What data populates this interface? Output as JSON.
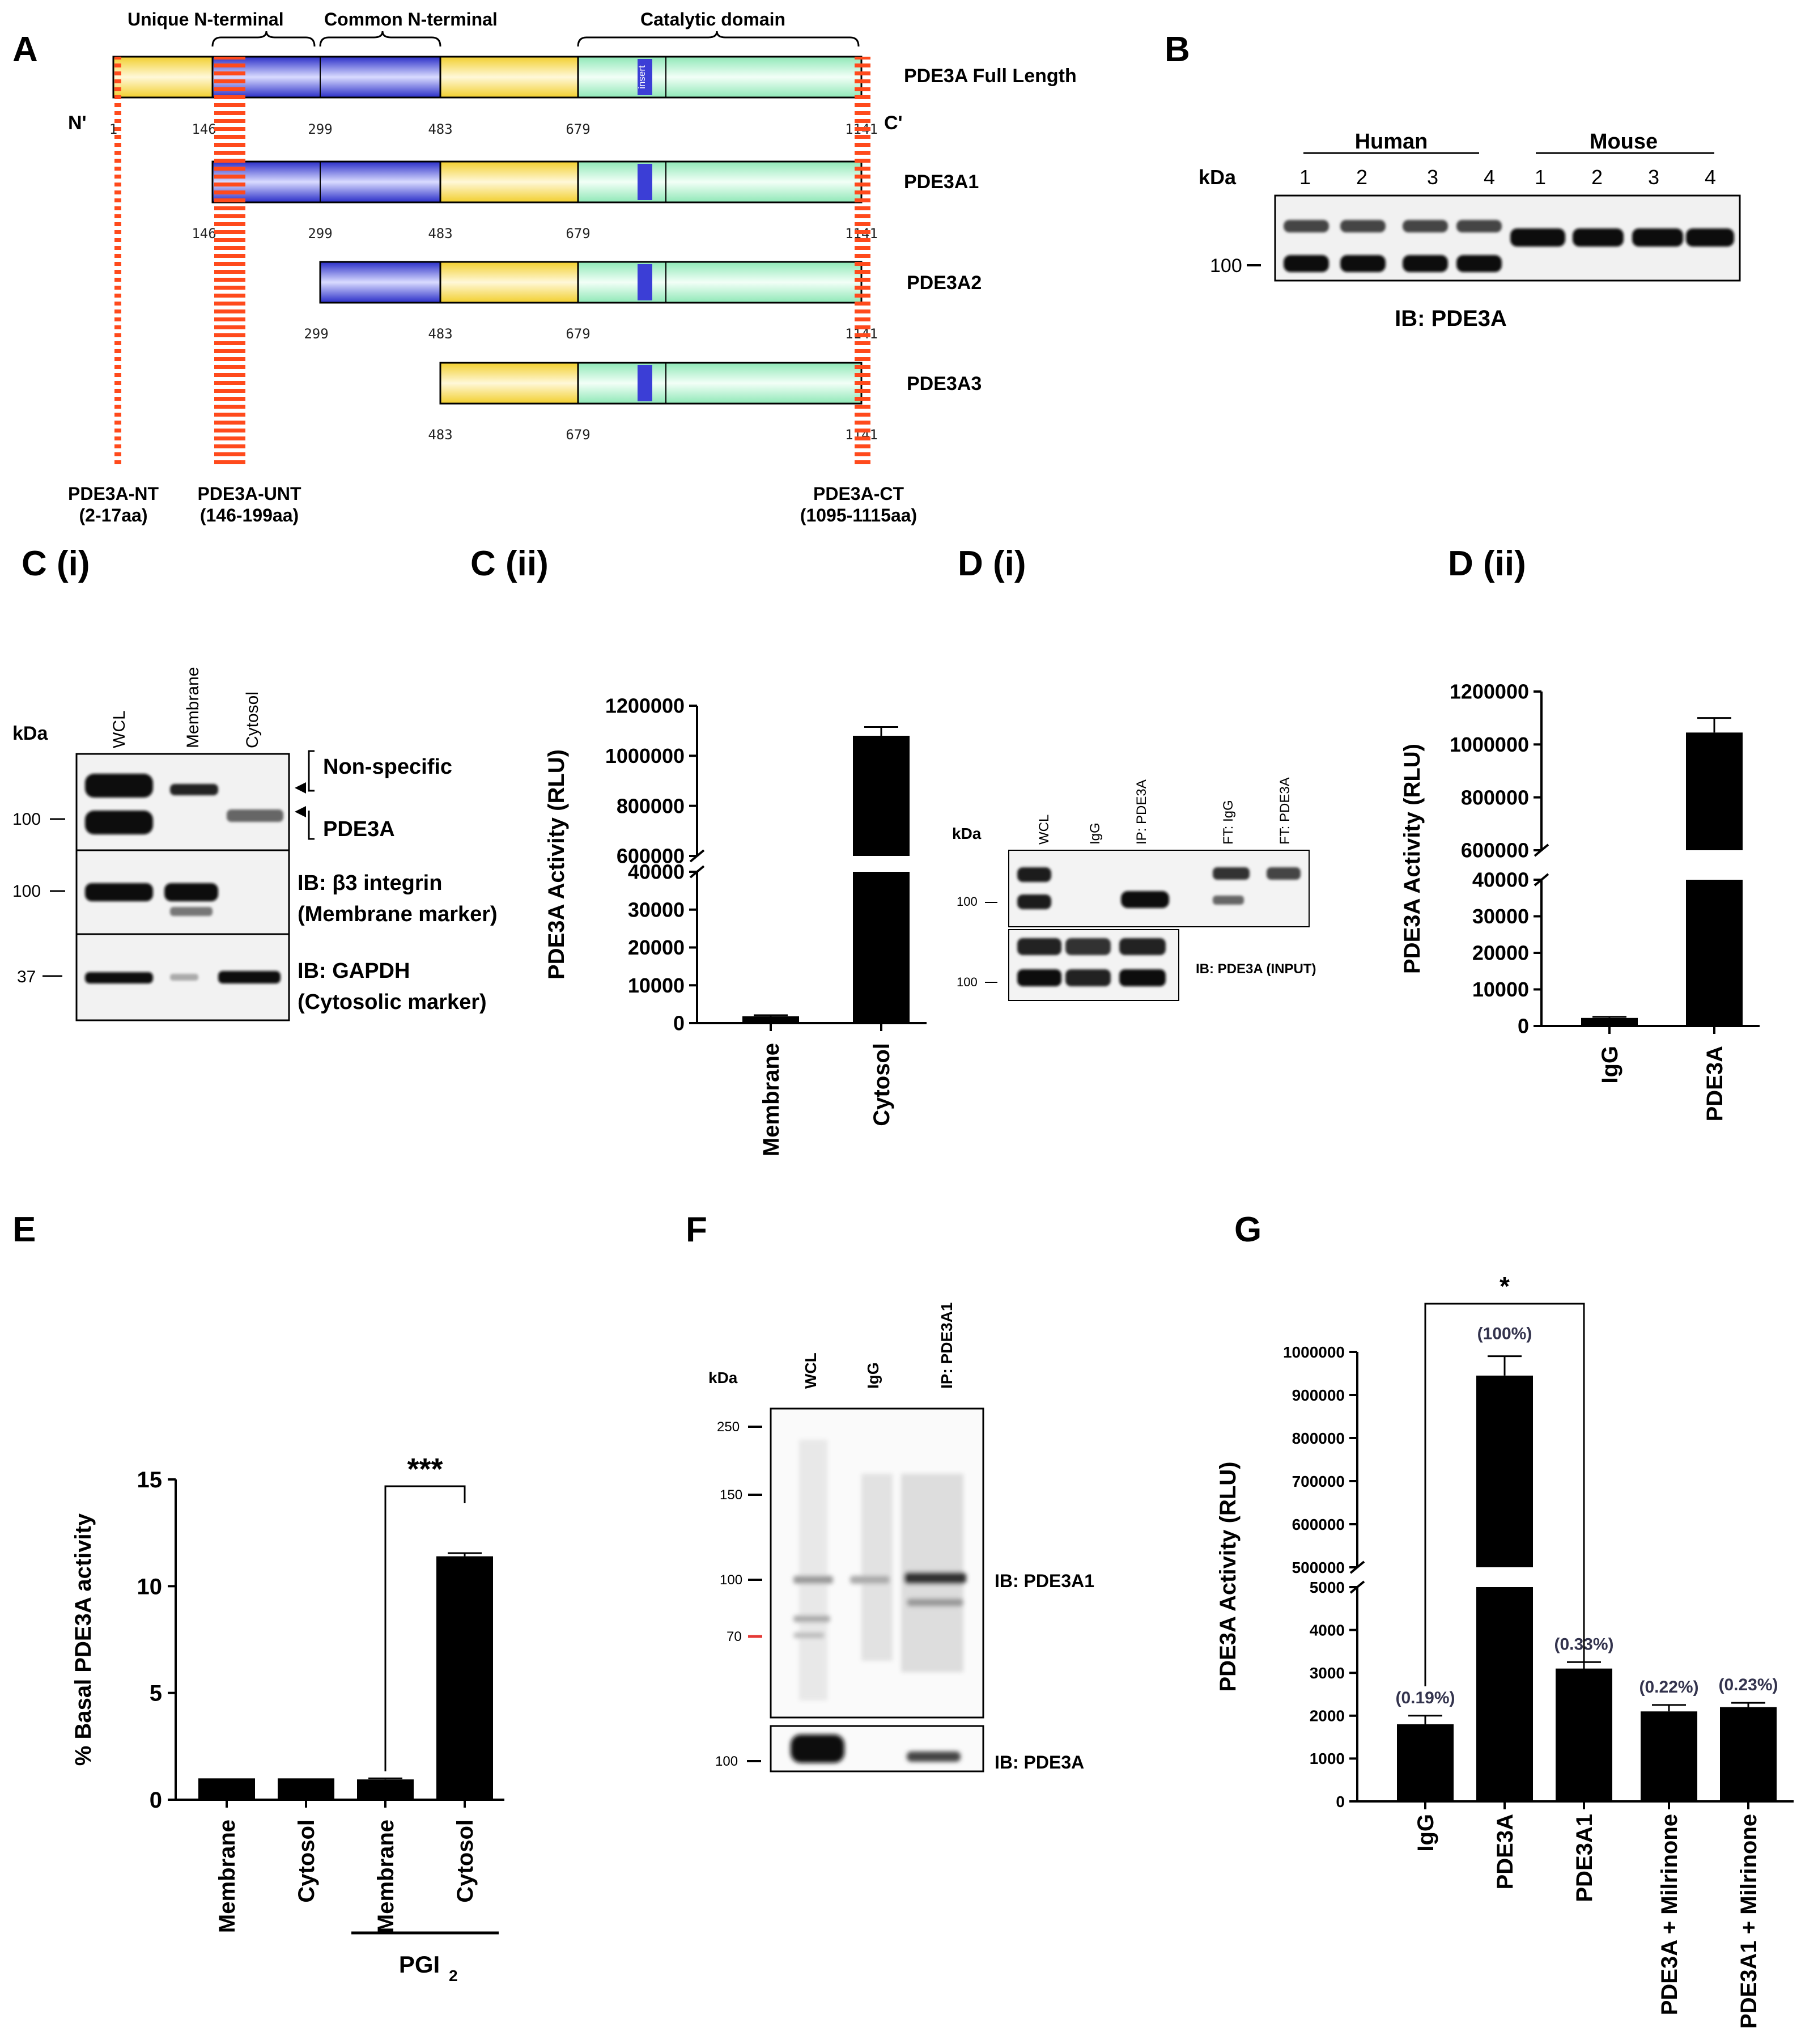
{
  "panel_labels": {
    "A": "A",
    "B": "B",
    "Ci": "C (i)",
    "Cii": "C (ii)",
    "Di": "D (i)",
    "Dii": "D (ii)",
    "E": "E",
    "F": "F",
    "G": "G"
  },
  "panelA": {
    "domain_labels": [
      "Unique N-terminal",
      "Common N-terminal",
      "Catalytic domain"
    ],
    "n_term": "N'",
    "c_term": "C'",
    "insert_label": "insert",
    "isoforms": [
      {
        "name": "PDE3A Full Length",
        "ticks": [
          "1",
          "146",
          "299",
          "483",
          "679",
          "1141"
        ]
      },
      {
        "name": "PDE3A1",
        "ticks": [
          "146",
          "299",
          "483",
          "679",
          "1141"
        ]
      },
      {
        "name": "PDE3A2",
        "ticks": [
          "299",
          "483",
          "679",
          "1141"
        ]
      },
      {
        "name": "PDE3A3",
        "ticks": [
          "483",
          "679",
          "1141"
        ]
      }
    ],
    "antibodies": [
      {
        "name": "PDE3A-NT",
        "range": "(2-17aa)"
      },
      {
        "name": "PDE3A-UNT",
        "range": "(146-199aa)"
      },
      {
        "name": "PDE3A-CT",
        "range": "(1095-1115aa)"
      }
    ]
  },
  "panelB": {
    "groups": [
      "Human",
      "Mouse"
    ],
    "lanes": [
      "1",
      "2",
      "3",
      "4",
      "1",
      "2",
      "3",
      "4"
    ],
    "kda": "kDa",
    "marker": "100",
    "caption": "IB: PDE3A"
  },
  "panelCi": {
    "kda": "kDa",
    "lanes": [
      "WCL",
      "Membrane",
      "Cytosol"
    ],
    "markers": [
      "100",
      "100",
      "37"
    ],
    "labels": [
      "Non-specific",
      "PDE3A",
      "IB: β3 integrin",
      "(Membrane marker)",
      "IB: GAPDH",
      "(Cytosolic marker)"
    ]
  },
  "panelDi": {
    "kda": "kDa",
    "lanes": [
      "WCL",
      "IgG",
      "IP: PDE3A",
      "FT: IgG",
      "FT: PDE3A"
    ],
    "markers": [
      "100",
      "100"
    ],
    "input_label": "IB: PDE3A (INPUT)"
  },
  "panelF": {
    "kda": "kDa",
    "lanes": [
      "WCL",
      "IgG",
      "IP: PDE3A1"
    ],
    "markers": [
      "250",
      "150",
      "100",
      "70",
      "100"
    ],
    "labels": [
      "IB: PDE3A1",
      "IB: PDE3A"
    ],
    "colors": {
      "marker70": "#e53935"
    }
  },
  "colors": {
    "yellow": "#f5d64a",
    "blue": "#3b3ed6",
    "green": "#a6efc7",
    "stripe": "#ff4a1c",
    "bar": "#000000"
  },
  "chart_data": [
    {
      "id": "Cii",
      "type": "bar",
      "ylabel": "PDE3A Activity (RLU)",
      "categories": [
        "Membrane",
        "Cytosol"
      ],
      "values": [
        1800,
        1080000
      ],
      "errors": [
        300,
        35000
      ],
      "broken_axis": {
        "lower_range": [
          0,
          40000
        ],
        "upper_range": [
          600000,
          1200000
        ],
        "lower_ticks": [
          "0",
          "10000",
          "20000",
          "30000",
          "40000"
        ],
        "upper_ticks": [
          "600000",
          "800000",
          "1000000",
          "1200000"
        ]
      }
    },
    {
      "id": "Dii",
      "type": "bar",
      "ylabel": "PDE3A Activity (RLU)",
      "categories": [
        "IgG",
        "PDE3A"
      ],
      "values": [
        2200,
        1045000
      ],
      "errors": [
        300,
        55000
      ],
      "broken_axis": {
        "lower_range": [
          0,
          40000
        ],
        "upper_range": [
          600000,
          1200000
        ],
        "lower_ticks": [
          "0",
          "10000",
          "20000",
          "30000",
          "40000"
        ],
        "upper_ticks": [
          "600000",
          "800000",
          "1000000",
          "1200000"
        ]
      }
    },
    {
      "id": "E",
      "type": "bar",
      "ylabel": "% Basal PDE3A activity",
      "categories": [
        "Membrane",
        "Cytosol",
        "Membrane",
        "Cytosol"
      ],
      "values": [
        1.0,
        1.0,
        0.95,
        11.4
      ],
      "errors": [
        0,
        0,
        0.05,
        0.15
      ],
      "ylim": [
        0,
        15
      ],
      "yticks": [
        "0",
        "5",
        "10",
        "15"
      ],
      "significance": "***",
      "group_label": "PGI",
      "group_label_sub": "2"
    },
    {
      "id": "G",
      "type": "bar",
      "ylabel": "PDE3A Activity (RLU)",
      "categories": [
        "IgG",
        "PDE3A",
        "PDE3A1",
        "PDE3A + Milrinone",
        "PDE3A1 + Milrinone"
      ],
      "values": [
        1800,
        945000,
        3100,
        2100,
        2200
      ],
      "errors": [
        200,
        45000,
        150,
        150,
        100
      ],
      "percent_labels": [
        "(0.19%)",
        "(100%)",
        "(0.33%)",
        "(0.22%)",
        "(0.23%)"
      ],
      "significance": "*",
      "broken_axis": {
        "lower_range": [
          0,
          5000
        ],
        "upper_range": [
          500000,
          1000000
        ],
        "lower_ticks": [
          "0",
          "1000",
          "2000",
          "3000",
          "4000",
          "5000"
        ],
        "upper_ticks": [
          "500000",
          "600000",
          "700000",
          "800000",
          "900000",
          "1000000"
        ]
      }
    }
  ]
}
